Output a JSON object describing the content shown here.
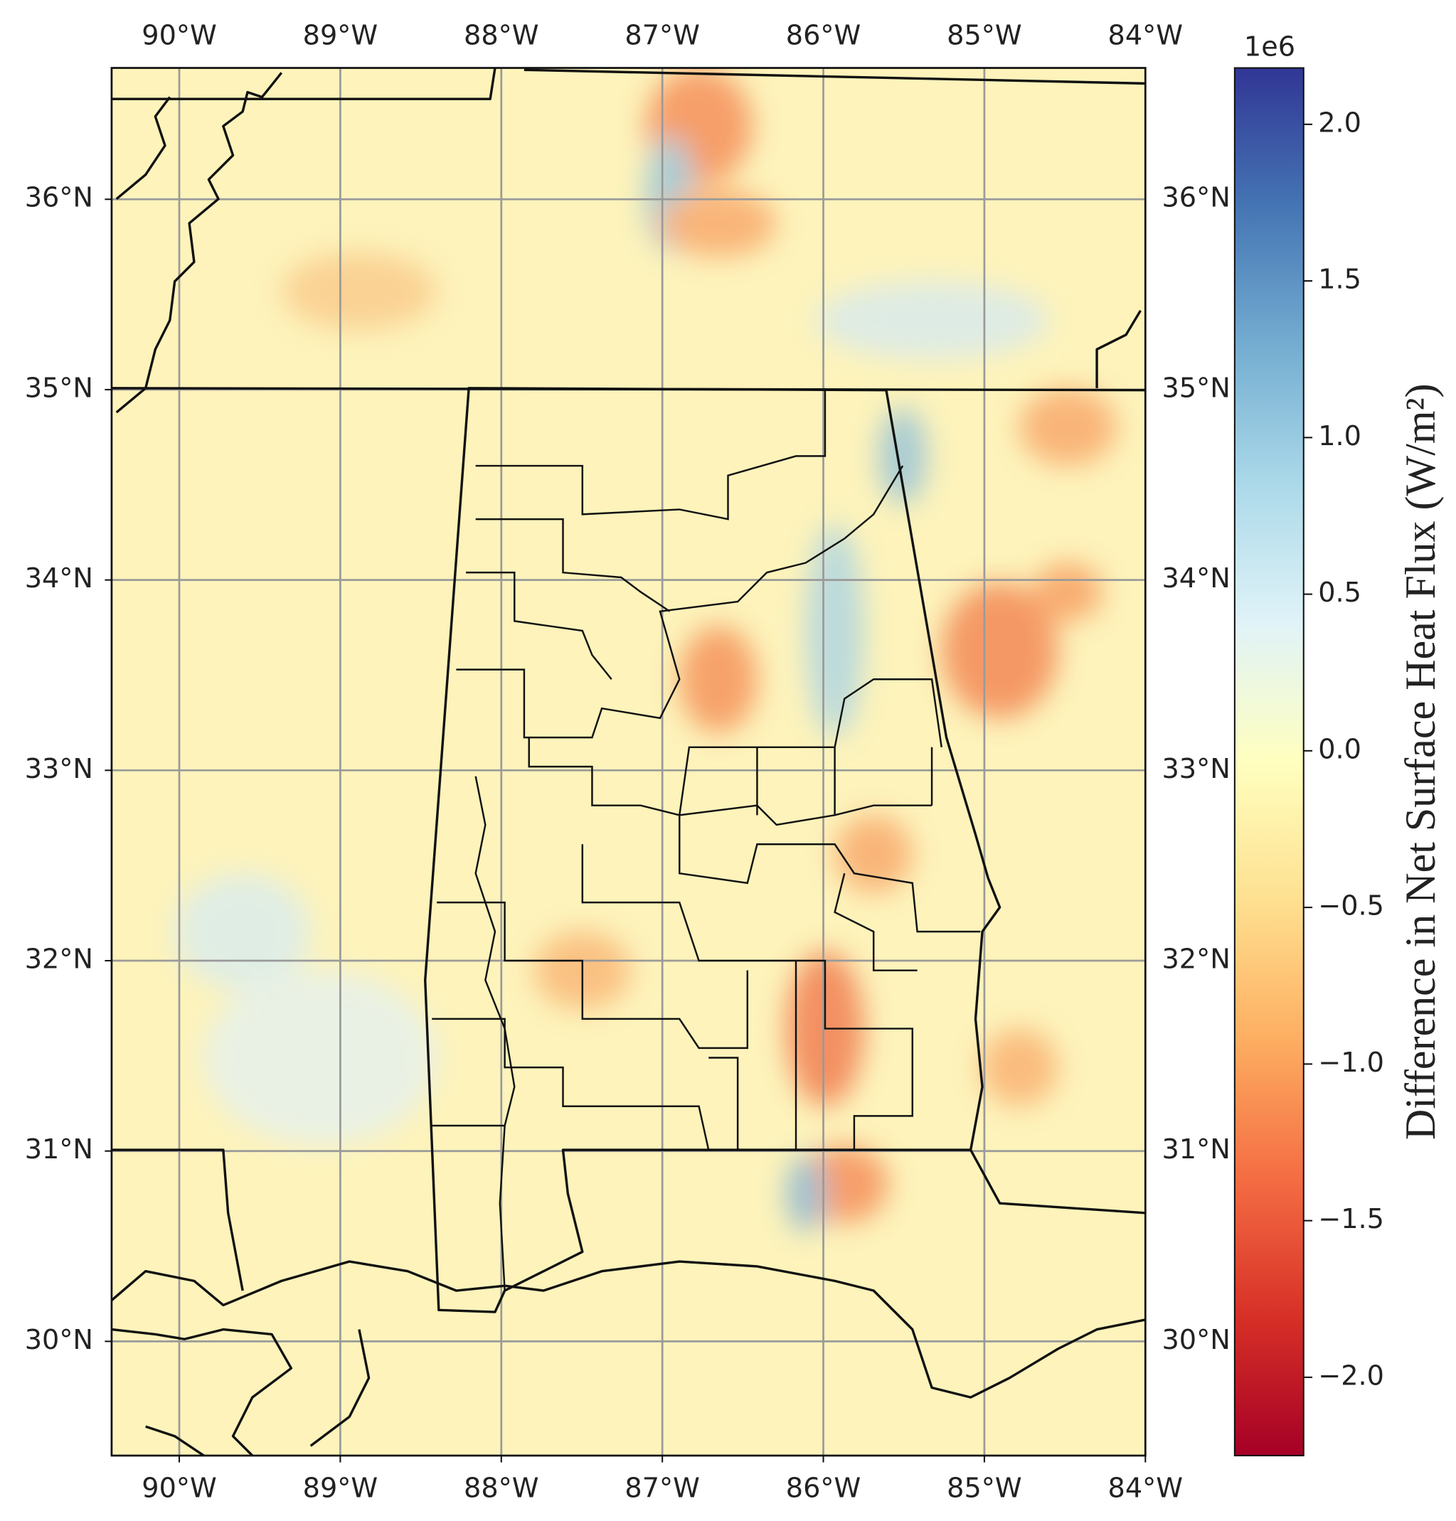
{
  "chart_data": {
    "type": "map",
    "xlim": [
      -90.42,
      -84.0
    ],
    "ylim": [
      29.4,
      36.69
    ],
    "xticks": [
      {
        "value": -90,
        "label": "90°W"
      },
      {
        "value": -89,
        "label": "89°W"
      },
      {
        "value": -88,
        "label": "88°W"
      },
      {
        "value": -87,
        "label": "87°W"
      },
      {
        "value": -86,
        "label": "86°W"
      },
      {
        "value": -85,
        "label": "85°W"
      },
      {
        "value": -84,
        "label": "84°W"
      }
    ],
    "yticks": [
      {
        "value": 30,
        "label": "30°N"
      },
      {
        "value": 31,
        "label": "31°N"
      },
      {
        "value": 32,
        "label": "32°N"
      },
      {
        "value": 33,
        "label": "33°N"
      },
      {
        "value": 34,
        "label": "34°N"
      },
      {
        "value": 35,
        "label": "35°N"
      },
      {
        "value": 36,
        "label": "36°N"
      }
    ],
    "grid": true,
    "colormap": "RdYlBu",
    "clim": [
      -2.25,
      2.18
    ],
    "cticks": [
      {
        "value": -2,
        "label": "−2.0"
      },
      {
        "value": -1.5,
        "label": "−1.5"
      },
      {
        "value": -1,
        "label": "−1.0"
      },
      {
        "value": -0.5,
        "label": "−0.5"
      },
      {
        "value": 0,
        "label": "0.0"
      },
      {
        "value": 0.5,
        "label": "0.5"
      },
      {
        "value": 1,
        "label": "1.0"
      },
      {
        "value": 1.5,
        "label": "1.5"
      },
      {
        "value": 2,
        "label": "2.0"
      }
    ],
    "colorbar_offset": "1e6",
    "colorbar_label": "Difference in Net Surface Heat Flux (W/m²)"
  }
}
